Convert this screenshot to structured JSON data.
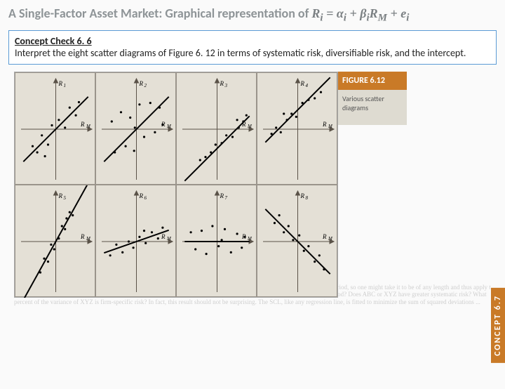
{
  "title_parts": {
    "a": "A Single-Factor Asset Market: Graphical representation of ",
    "eq": "R",
    "eq2": "i",
    "eq3": " = α",
    "eq4": "i",
    "eq5": " + β",
    "eq6": "i",
    "eq7": "R",
    "eq8": "M",
    "eq9": " + e",
    "eq10": "i"
  },
  "concept": {
    "heading": "Concept Check 6. 6",
    "body": "Interpret the eight scatter diagrams of Figure 6. 12 in terms of systematic risk, diversifiable risk, and the intercept."
  },
  "figure": {
    "label": "FIGURE 6.12",
    "caption": "Various scatter diagrams",
    "concept_tab": "CONCEPT   6.7",
    "bg_color": "#e4e0d6",
    "axis_color": "#5a5248",
    "line_color": "#000000",
    "point_color": "#000000",
    "panels": [
      {
        "id": 1,
        "ylabel": "R₁",
        "slope": 1.0,
        "intercept": 0,
        "spread": 7,
        "points": [
          [
            -30,
            -22
          ],
          [
            -24,
            -30
          ],
          [
            -18,
            -8
          ],
          [
            -10,
            -20
          ],
          [
            -5,
            5
          ],
          [
            4,
            12
          ],
          [
            12,
            2
          ],
          [
            18,
            28
          ],
          [
            26,
            18
          ],
          [
            30,
            35
          ],
          [
            -14,
            -35
          ]
        ]
      },
      {
        "id": 2,
        "ylabel": "R₂",
        "slope": 1.0,
        "intercept": 0,
        "spread": 22,
        "points": [
          [
            -32,
            10
          ],
          [
            -28,
            -30
          ],
          [
            -20,
            22
          ],
          [
            -14,
            -22
          ],
          [
            -8,
            15
          ],
          [
            -3,
            -28
          ],
          [
            4,
            32
          ],
          [
            10,
            -10
          ],
          [
            18,
            34
          ],
          [
            24,
            -4
          ],
          [
            30,
            28
          ],
          [
            34,
            6
          ],
          [
            -2,
            2
          ]
        ]
      },
      {
        "id": 3,
        "ylabel": "R₃",
        "slope": 1.0,
        "intercept": -25,
        "spread": 7,
        "points": [
          [
            -22,
            -40
          ],
          [
            -15,
            -36
          ],
          [
            -8,
            -30
          ],
          [
            -2,
            -20
          ],
          [
            6,
            -18
          ],
          [
            12,
            -8
          ],
          [
            20,
            -10
          ],
          [
            28,
            2
          ],
          [
            34,
            10
          ],
          [
            38,
            18
          ],
          [
            26,
            12
          ]
        ]
      },
      {
        "id": 4,
        "ylabel": "R₄",
        "slope": 1.0,
        "intercept": 25,
        "spread": 7,
        "points": [
          [
            -34,
            -6
          ],
          [
            -28,
            2
          ],
          [
            -22,
            -4
          ],
          [
            -14,
            12
          ],
          [
            -8,
            20
          ],
          [
            -2,
            16
          ],
          [
            6,
            34
          ],
          [
            14,
            38
          ],
          [
            22,
            40
          ],
          [
            30,
            48
          ],
          [
            -18,
            20
          ]
        ]
      },
      {
        "id": 5,
        "ylabel": "R₅",
        "slope": 1.8,
        "intercept": 0,
        "spread": 7,
        "points": [
          [
            -20,
            -40
          ],
          [
            -15,
            -22
          ],
          [
            -10,
            -26
          ],
          [
            -6,
            -4
          ],
          [
            -2,
            -10
          ],
          [
            4,
            4
          ],
          [
            8,
            20
          ],
          [
            12,
            16
          ],
          [
            18,
            38
          ],
          [
            22,
            34
          ],
          [
            14,
            30
          ]
        ]
      },
      {
        "id": 6,
        "ylabel": "R₆",
        "slope": 0.35,
        "intercept": 0,
        "spread": 6,
        "points": [
          [
            -34,
            -18
          ],
          [
            -26,
            -4
          ],
          [
            -18,
            -14
          ],
          [
            -10,
            0
          ],
          [
            -4,
            -8
          ],
          [
            4,
            6
          ],
          [
            12,
            -2
          ],
          [
            20,
            12
          ],
          [
            28,
            4
          ],
          [
            34,
            18
          ],
          [
            10,
            14
          ]
        ]
      },
      {
        "id": 7,
        "ylabel": "R₇",
        "slope": 0.0,
        "intercept": 0,
        "spread": 14,
        "points": [
          [
            -34,
            12
          ],
          [
            -28,
            -10
          ],
          [
            -20,
            14
          ],
          [
            -14,
            -16
          ],
          [
            -6,
            20
          ],
          [
            2,
            -6
          ],
          [
            10,
            16
          ],
          [
            18,
            -14
          ],
          [
            26,
            10
          ],
          [
            32,
            -8
          ],
          [
            36,
            6
          ],
          [
            6,
            2
          ]
        ]
      },
      {
        "id": 8,
        "ylabel": "R₈",
        "slope": -1.0,
        "intercept": 0,
        "spread": 7,
        "points": [
          [
            -30,
            24
          ],
          [
            -24,
            34
          ],
          [
            -18,
            12
          ],
          [
            -12,
            20
          ],
          [
            -6,
            2
          ],
          [
            2,
            8
          ],
          [
            8,
            -12
          ],
          [
            14,
            -6
          ],
          [
            22,
            -26
          ],
          [
            28,
            -18
          ],
          [
            34,
            -36
          ]
        ]
      }
    ]
  }
}
